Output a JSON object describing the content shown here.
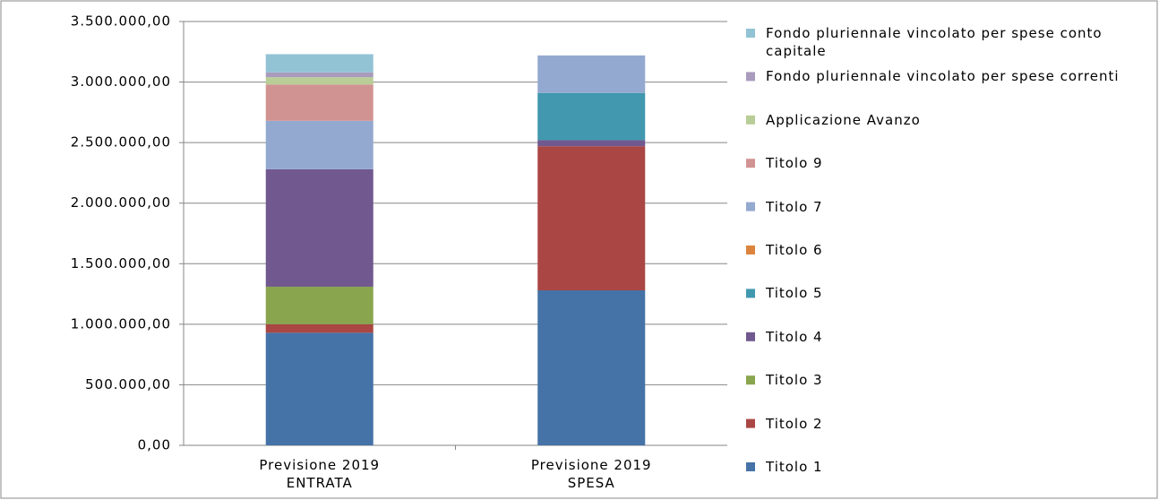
{
  "chart_data": {
    "type": "stacked_bar",
    "categories": [
      "Previsione 2019\nENTRATA",
      "Previsione 2019\nSPESA"
    ],
    "series": [
      {
        "name": "Titolo 1",
        "color": "#4572a7",
        "values": [
          930000,
          1280000
        ]
      },
      {
        "name": "Titolo 2",
        "color": "#aa4643",
        "values": [
          70000,
          1190000
        ]
      },
      {
        "name": "Titolo 3",
        "color": "#89a54e",
        "values": [
          310000,
          0
        ]
      },
      {
        "name": "Titolo 4",
        "color": "#71588f",
        "values": [
          970000,
          50000
        ]
      },
      {
        "name": "Titolo 5",
        "color": "#4198af",
        "values": [
          0,
          390000
        ]
      },
      {
        "name": "Titolo 6",
        "color": "#db843d",
        "values": [
          0,
          0
        ]
      },
      {
        "name": "Titolo 7",
        "color": "#93a9cf",
        "values": [
          400000,
          310000
        ]
      },
      {
        "name": "Titolo 9",
        "color": "#d19392",
        "values": [
          300000,
          0
        ]
      },
      {
        "name": "Applicazione Avanzo",
        "color": "#b9cd96",
        "values": [
          60000,
          0
        ]
      },
      {
        "name": "Fondo pluriennale vincolato per spese correnti",
        "color": "#a99bbd",
        "values": [
          40000,
          0
        ]
      },
      {
        "name": "Fondo pluriennale vincolato per spese conto capitale",
        "color": "#91c3d5",
        "values": [
          150000,
          0
        ]
      }
    ],
    "ylim": [
      0,
      3500000
    ],
    "yticks": [
      {
        "value": 0,
        "label": "0,00"
      },
      {
        "value": 500000,
        "label": "500.000,00"
      },
      {
        "value": 1000000,
        "label": "1.000.000,00"
      },
      {
        "value": 1500000,
        "label": "1.500.000,00"
      },
      {
        "value": 2000000,
        "label": "2.000.000,00"
      },
      {
        "value": 2500000,
        "label": "2.500.000,00"
      },
      {
        "value": 3000000,
        "label": "3.000.000,00"
      },
      {
        "value": 3500000,
        "label": "3.500.000,00"
      }
    ],
    "grid": true,
    "legend": "right"
  }
}
